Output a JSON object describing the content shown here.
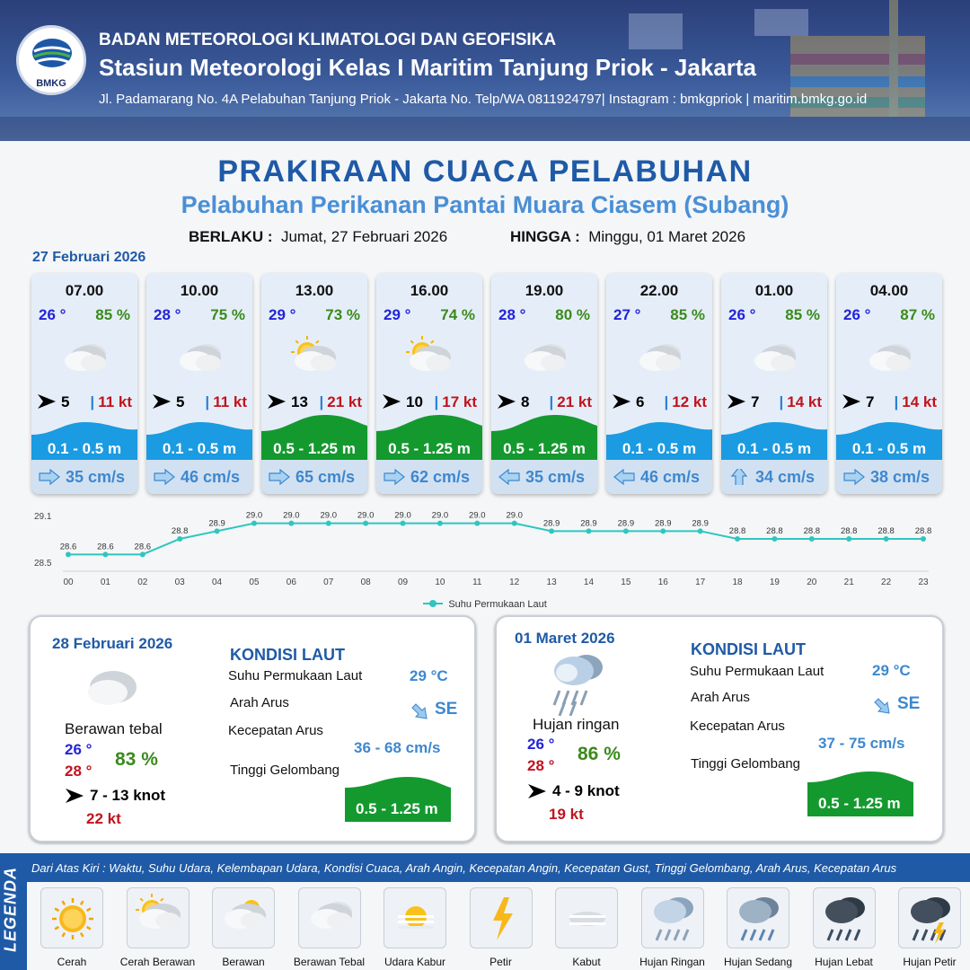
{
  "header": {
    "logo_text": "BMKG",
    "agency": "BADAN METEOROLOGI KLIMATOLOGI DAN GEOFISIKA",
    "station": "Stasiun Meteorologi Kelas I Maritim Tanjung Priok - Jakarta",
    "address": "Jl. Padamarang No. 4A Pelabuhan Tanjung Priok - Jakarta No. Telp/WA 0811924797| Instagram : bmkgpriok | maritim.bmkg.go.id"
  },
  "title": "PRAKIRAAN CUACA PELABUHAN",
  "subtitle": "Pelabuhan Perikanan Pantai Muara Ciasem (Subang)",
  "validity": {
    "from_label": "BERLAKU :",
    "from_value": "Jumat, 27 Februari 2026",
    "to_label": "HINGGA :",
    "to_value": "Minggu, 01 Maret 2026"
  },
  "day1_date": "27 Februari 2026",
  "hourly": [
    {
      "time": "07.00",
      "temp": "26 °",
      "rh": "85 %",
      "icon": "berawan-tebal",
      "wind_dir": "E",
      "wind": "5",
      "gust": "11 kt",
      "wave": "0.1 - 0.5 m",
      "wave_class": "low",
      "current_dir": "E",
      "current": "35 cm/s"
    },
    {
      "time": "10.00",
      "temp": "28 °",
      "rh": "75 %",
      "icon": "berawan-tebal",
      "wind_dir": "E",
      "wind": "5",
      "gust": "11 kt",
      "wave": "0.1 - 0.5 m",
      "wave_class": "low",
      "current_dir": "E",
      "current": "46 cm/s"
    },
    {
      "time": "13.00",
      "temp": "29 °",
      "rh": "73 %",
      "icon": "cerah-berawan",
      "wind_dir": "E",
      "wind": "13",
      "gust": "21 kt",
      "wave": "0.5 - 1.25 m",
      "wave_class": "mid",
      "current_dir": "E",
      "current": "65 cm/s"
    },
    {
      "time": "16.00",
      "temp": "29 °",
      "rh": "74 %",
      "icon": "cerah-berawan",
      "wind_dir": "E",
      "wind": "10",
      "gust": "17 kt",
      "wave": "0.5 - 1.25 m",
      "wave_class": "mid",
      "current_dir": "E",
      "current": "62 cm/s"
    },
    {
      "time": "19.00",
      "temp": "28 °",
      "rh": "80 %",
      "icon": "berawan-tebal",
      "wind_dir": "E",
      "wind": "8",
      "gust": "21 kt",
      "wave": "0.5 - 1.25 m",
      "wave_class": "mid",
      "current_dir": "W",
      "current": "35 cm/s"
    },
    {
      "time": "22.00",
      "temp": "27 °",
      "rh": "85 %",
      "icon": "berawan-tebal",
      "wind_dir": "E",
      "wind": "6",
      "gust": "12 kt",
      "wave": "0.1 - 0.5 m",
      "wave_class": "low",
      "current_dir": "W",
      "current": "46 cm/s"
    },
    {
      "time": "01.00",
      "temp": "26 °",
      "rh": "85 %",
      "icon": "berawan-tebal",
      "wind_dir": "E",
      "wind": "7",
      "gust": "14 kt",
      "wave": "0.1 - 0.5 m",
      "wave_class": "low",
      "current_dir": "N",
      "current": "34 cm/s"
    },
    {
      "time": "04.00",
      "temp": "26 °",
      "rh": "87 %",
      "icon": "berawan-tebal",
      "wind_dir": "E",
      "wind": "7",
      "gust": "14 kt",
      "wave": "0.1 - 0.5 m",
      "wave_class": "low",
      "current_dir": "E",
      "current": "38 cm/s"
    }
  ],
  "colors": {
    "wave_low": "#1a9be2",
    "wave_mid": "#14992f",
    "temp": "#2323d8",
    "rh": "#3b8a1d",
    "gust": "#c0141e",
    "accent": "#1f5aa6"
  },
  "chart_data": {
    "type": "line",
    "series": [
      {
        "name": "Suhu Permukaan Laut",
        "values": [
          28.6,
          28.6,
          28.6,
          28.8,
          28.9,
          29.0,
          29.0,
          29.0,
          29.0,
          29.0,
          29.0,
          29.0,
          29.0,
          28.9,
          28.9,
          28.9,
          28.9,
          28.9,
          28.8,
          28.8,
          28.8,
          28.8,
          28.8,
          28.8
        ]
      }
    ],
    "categories": [
      "00",
      "01",
      "02",
      "03",
      "04",
      "05",
      "06",
      "07",
      "08",
      "09",
      "10",
      "11",
      "12",
      "13",
      "14",
      "15",
      "16",
      "17",
      "18",
      "19",
      "20",
      "21",
      "22",
      "23"
    ],
    "data_labels": [
      "28.6",
      "28.6",
      "28.6",
      "28.8",
      "28.9",
      "29.0",
      "29.0",
      "29.0",
      "29.0",
      "29.0",
      "29.0",
      "29.0",
      "29.0",
      "28.9",
      "28.9",
      "28.9",
      "28.9",
      "28.9",
      "28.8",
      "28.8",
      "28.8",
      "28.8",
      "28.8",
      "28.8"
    ],
    "yticks": [
      "29.1",
      "28.5"
    ],
    "ylim": [
      28.5,
      29.1
    ],
    "legend": "bottom"
  },
  "days": [
    {
      "date": "28 Februari 2026",
      "condition": "Berawan tebal",
      "icon": "berawan-tebal",
      "tmin": "26 °",
      "tmax": "28 °",
      "rh": "83 %",
      "wind": "7  - 13 knot",
      "gust": "22 kt",
      "kondisi_title": "KONDISI LAUT",
      "sst_label": "Suhu Permukaan Laut",
      "sst": "29 °C",
      "arah_label": "Arah Arus",
      "arah": "SE",
      "kec_label": "Kecepatan Arus",
      "kec": "36  - 68 cm/s",
      "tinggi_label": "Tinggi Gelombang",
      "tinggi": "0.5 - 1.25 m"
    },
    {
      "date": "01 Maret 2026",
      "condition": "Hujan ringan",
      "icon": "hujan-ringan",
      "tmin": "26 °",
      "tmax": "28 °",
      "rh": "86 %",
      "wind": "4  - 9 knot",
      "gust": "19 kt",
      "kondisi_title": "KONDISI LAUT",
      "sst_label": "Suhu Permukaan Laut",
      "sst": "29 °C",
      "arah_label": "Arah Arus",
      "arah": "SE",
      "kec_label": "Kecepatan Arus",
      "kec": "37  - 75 cm/s",
      "tinggi_label": "Tinggi Gelombang",
      "tinggi": "0.5 - 1.25 m"
    }
  ],
  "legend": {
    "side_label": "LEGENDA",
    "description": "Dari Atas Kiri : Waktu, Suhu Udara, Kelembapan Udara, Kondisi Cuaca, Arah Angin, Kecepatan Angin, Kecepatan Gust, Tinggi Gelombang, Arah Arus, Kecepatan Arus",
    "items": [
      {
        "label": "Cerah",
        "icon": "cerah"
      },
      {
        "label": "Cerah Berawan",
        "icon": "cerah-berawan"
      },
      {
        "label": "Berawan",
        "icon": "berawan"
      },
      {
        "label": "Berawan Tebal",
        "icon": "berawan-tebal"
      },
      {
        "label": "Udara Kabur",
        "icon": "udara-kabur"
      },
      {
        "label": "Petir",
        "icon": "petir"
      },
      {
        "label": "Kabut",
        "icon": "kabut"
      },
      {
        "label": "Hujan Ringan",
        "icon": "hujan-ringan"
      },
      {
        "label": "Hujan Sedang",
        "icon": "hujan-sedang"
      },
      {
        "label": "Hujan Lebat",
        "icon": "hujan-lebat"
      },
      {
        "label": "Hujan Petir",
        "icon": "hujan-petir"
      }
    ]
  }
}
